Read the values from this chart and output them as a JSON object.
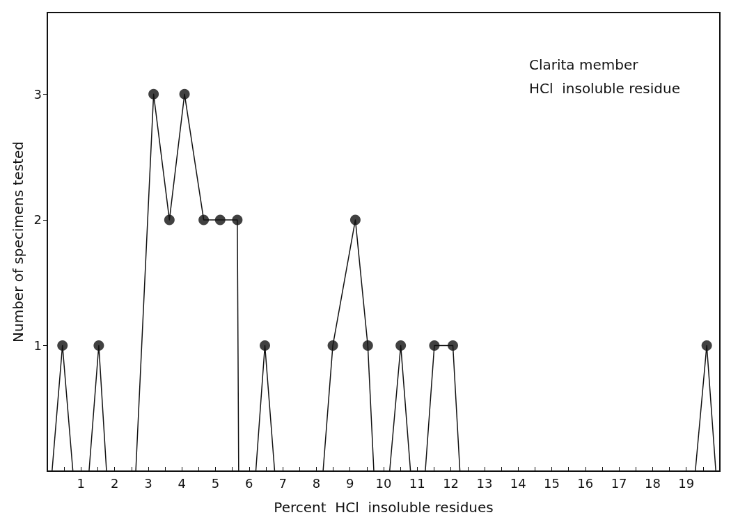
{
  "chart_data": {
    "type": "line",
    "title": "Clarita member",
    "subtitle": "HCl  insoluble residue",
    "xlabel": "Percent  HCl  insoluble residues",
    "ylabel": "Number of specimens tested",
    "xlim": [
      0,
      20
    ],
    "ylim": [
      0,
      3.65
    ],
    "xticks": [
      {
        "value": 0.5,
        "label": null
      },
      1,
      {
        "value": 1.5,
        "label": null
      },
      2,
      {
        "value": 2.5,
        "label": null
      },
      3,
      {
        "value": 3.5,
        "label": null
      },
      4,
      {
        "value": 4.5,
        "label": null
      },
      5,
      {
        "value": 5.5,
        "label": null
      },
      6,
      {
        "value": 6.5,
        "label": null
      },
      7,
      {
        "value": 7.5,
        "label": null
      },
      8,
      {
        "value": 8.5,
        "label": null
      },
      9,
      {
        "value": 9.5,
        "label": null
      },
      10,
      {
        "value": 10.5,
        "label": null
      },
      11,
      {
        "value": 11.5,
        "label": null
      },
      12,
      {
        "value": 12.5,
        "label": null
      },
      13,
      {
        "value": 13.5,
        "label": null
      },
      14,
      {
        "value": 14.5,
        "label": null
      },
      15,
      {
        "value": 15.5,
        "label": null
      },
      16,
      {
        "value": 16.5,
        "label": null
      },
      17,
      {
        "value": 17.5,
        "label": null
      },
      18,
      {
        "value": 18.5,
        "label": null
      },
      19,
      {
        "value": 19.5,
        "label": null
      }
    ],
    "yticks": [
      1,
      2,
      3
    ],
    "grid": false,
    "series": [
      {
        "color": "#111111",
        "marker": "none",
        "x": [
          0.14,
          0.45,
          0.76,
          1.24,
          1.53,
          1.76,
          2.63,
          3.16,
          3.63,
          4.08,
          4.65,
          5.14,
          5.65,
          5.69,
          6.2,
          6.47,
          6.76,
          8.2,
          8.49,
          9.16,
          9.53,
          9.71,
          10.18,
          10.51,
          10.8,
          11.24,
          11.51,
          12.06,
          12.27,
          19.27,
          19.61,
          19.88
        ],
        "values": [
          0,
          1,
          0,
          0,
          1,
          0,
          0,
          3,
          2,
          3,
          2,
          2,
          2,
          0,
          0,
          1,
          0,
          0,
          1,
          2,
          1,
          0,
          0,
          1,
          0,
          0,
          1,
          1,
          0,
          0,
          1,
          0
        ]
      },
      {
        "type": "scatter",
        "color": "#111111",
        "marker": "circle",
        "x": [
          0.45,
          1.53,
          3.16,
          3.63,
          4.08,
          4.65,
          5.14,
          5.65,
          6.47,
          8.49,
          9.16,
          9.53,
          10.51,
          11.51,
          12.06,
          19.61
        ],
        "values": [
          1,
          1,
          3,
          2,
          3,
          2,
          2,
          2,
          1,
          1,
          2,
          1,
          1,
          1,
          1,
          1
        ]
      }
    ]
  }
}
